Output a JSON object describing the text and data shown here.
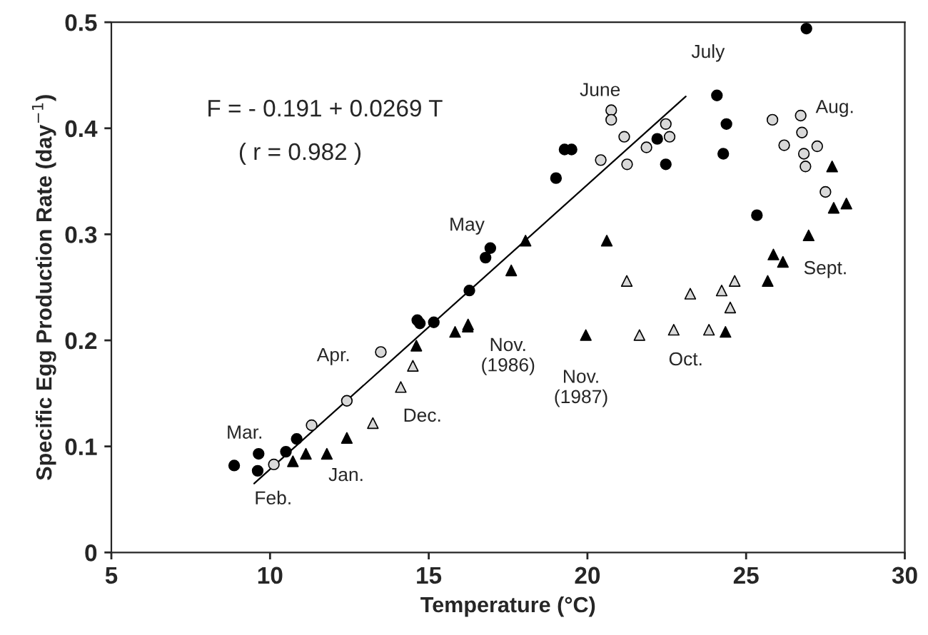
{
  "chart_data": {
    "type": "scatter",
    "xlabel": "Temperature (°C)",
    "ylabel": "Specific Egg Production Rate (day$^{−1}$)",
    "xlim": [
      5,
      30
    ],
    "ylim": [
      0,
      0.5
    ],
    "xticks": [
      5,
      10,
      15,
      20,
      25,
      30
    ],
    "yticks": [
      0,
      0.1,
      0.2,
      0.3,
      0.4,
      0.5
    ],
    "grid": false,
    "legend": false,
    "series": [
      {
        "marker": "circle",
        "color": "#000000",
        "x": [
          26.9,
          24.08,
          24.38,
          24.28,
          22.47,
          22.2,
          25.34,
          19.28,
          19.5,
          19.01,
          16.94,
          16.79,
          16.28,
          14.72,
          8.87,
          9.64,
          9.61,
          10.5,
          10.84,
          14.64,
          15.16
        ],
        "values": [
          0.494,
          0.431,
          0.404,
          0.376,
          0.366,
          0.39,
          0.318,
          0.38,
          0.38,
          0.353,
          0.287,
          0.278,
          0.247,
          0.216,
          0.082,
          0.093,
          0.077,
          0.095,
          0.107,
          0.219,
          0.217
        ]
      },
      {
        "marker": "circle",
        "color": "#d9d9d9",
        "x": [
          20.75,
          20.75,
          21.16,
          20.42,
          21.25,
          21.86,
          22.47,
          22.59,
          25.83,
          26.72,
          26.76,
          26.2,
          26.82,
          27.24,
          26.87,
          27.5,
          13.49,
          12.42,
          11.31,
          10.12
        ],
        "values": [
          0.417,
          0.408,
          0.392,
          0.37,
          0.366,
          0.382,
          0.404,
          0.392,
          0.408,
          0.412,
          0.396,
          0.384,
          0.376,
          0.383,
          0.364,
          0.34,
          0.189,
          0.143,
          0.12,
          0.083
        ]
      },
      {
        "marker": "triangle",
        "color": "#000000",
        "x": [
          27.71,
          27.76,
          28.16,
          26.97,
          25.86,
          26.16,
          25.68,
          24.35,
          20.61,
          19.95,
          18.05,
          17.6,
          16.24,
          15.83,
          11.13,
          11.79,
          12.42,
          10.72,
          14.61,
          16.23
        ],
        "values": [
          0.364,
          0.325,
          0.329,
          0.299,
          0.281,
          0.274,
          0.256,
          0.208,
          0.294,
          0.205,
          0.294,
          0.266,
          0.215,
          0.208,
          0.093,
          0.093,
          0.108,
          0.086,
          0.195,
          0.213
        ]
      },
      {
        "marker": "triangle",
        "color": "#d9d9d9",
        "x": [
          21.24,
          23.24,
          24.23,
          24.64,
          24.5,
          21.64,
          22.72,
          23.83,
          13.24,
          14.12,
          14.5
        ],
        "values": [
          0.256,
          0.244,
          0.247,
          0.256,
          0.231,
          0.205,
          0.21,
          0.21,
          0.122,
          0.156,
          0.176
        ]
      },
      {
        "type": "line",
        "color": "#000000",
        "line_style": "solid",
        "x": [
          9.5,
          23.1
        ],
        "values": [
          0.065,
          0.43
        ]
      }
    ],
    "annotations": [
      "F = - 0.191 + 0.0269 T",
      "( r = 0.982 )",
      "Mar.",
      "Feb.",
      "Jan.",
      "Dec.",
      "Apr.",
      "Nov.\n(1986)",
      "May",
      "June",
      "July",
      "Aug.",
      "Sept.",
      "Oct.",
      "Nov.\n(1987)"
    ]
  }
}
